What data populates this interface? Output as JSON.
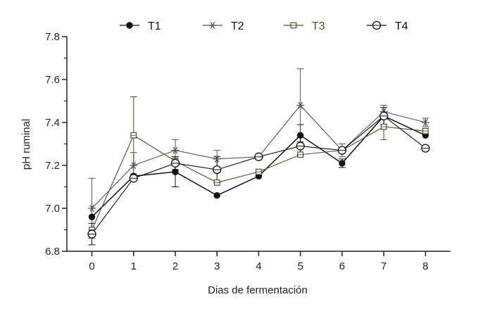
{
  "chart_data": {
    "type": "line",
    "title": "",
    "xlabel": "Dias de fermentación",
    "ylabel": "pH ruminal",
    "x": [
      0,
      1,
      2,
      3,
      4,
      5,
      6,
      7,
      8
    ],
    "xlim": [
      -0.6,
      8.6
    ],
    "ylim": [
      6.8,
      7.8
    ],
    "yticks": [
      "6.8",
      "7.0",
      "7.2",
      "7.4",
      "7.6",
      "7.8"
    ],
    "yticks_minor": [
      6.9,
      7.1,
      7.3,
      7.5,
      7.7
    ],
    "legend_position": "top",
    "series": [
      {
        "name": "T1",
        "marker": "filled-circle",
        "color": "#111111",
        "label_color": "#111111",
        "values": [
          6.96,
          7.15,
          7.17,
          7.06,
          7.15,
          7.34,
          7.21,
          7.43,
          7.34
        ],
        "errors": [
          0,
          0,
          0.07,
          0,
          0,
          0.05,
          0.02,
          0,
          0
        ]
      },
      {
        "name": "T2",
        "marker": "asterisk",
        "color": "#555555",
        "label_color": "#111111",
        "values": [
          7.0,
          7.2,
          7.27,
          7.23,
          7.24,
          7.48,
          7.27,
          7.45,
          7.4
        ],
        "errors": [
          0.14,
          0.06,
          0.05,
          0.04,
          0,
          0.17,
          0.03,
          0.03,
          0.02
        ]
      },
      {
        "name": "T3",
        "marker": "open-square",
        "color": "#3d5a2a",
        "label_color": "#3d5a2a",
        "values": [
          6.9,
          7.34,
          7.22,
          7.12,
          7.17,
          7.25,
          7.27,
          7.38,
          7.36
        ],
        "errors": [
          0,
          0.18,
          0,
          0,
          0,
          0,
          0,
          0.06,
          0
        ]
      },
      {
        "name": "T4",
        "marker": "open-circle",
        "color": "#111111",
        "label_color": "#111111",
        "values": [
          6.88,
          7.14,
          7.21,
          7.18,
          7.24,
          7.29,
          7.27,
          7.43,
          7.28
        ],
        "errors": [
          0.05,
          0,
          0.03,
          0.06,
          0,
          0.04,
          0,
          0.04,
          0
        ]
      }
    ]
  }
}
